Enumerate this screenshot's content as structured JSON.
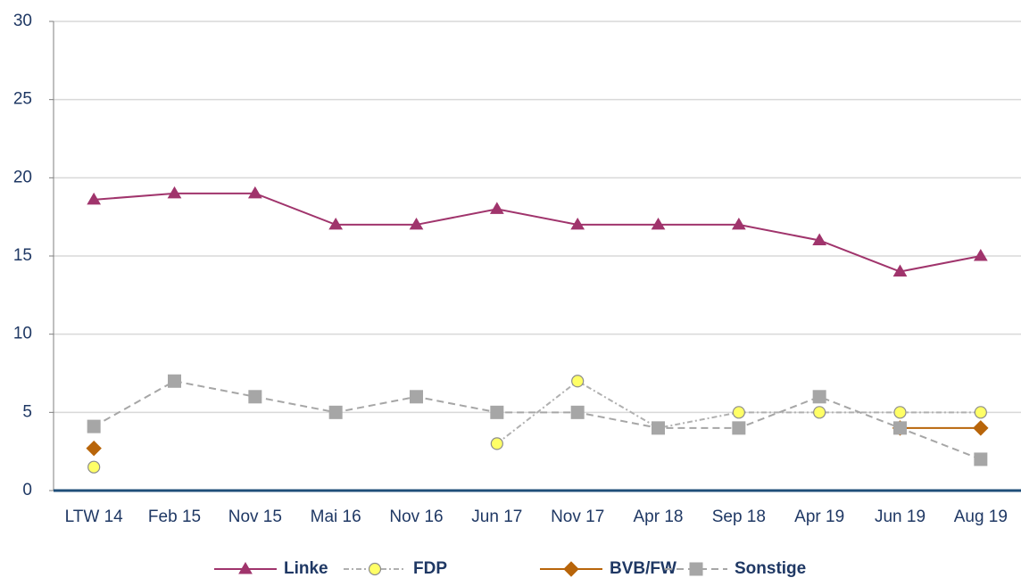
{
  "chart_data": {
    "type": "line",
    "categories": [
      "LTW 14",
      "Feb 15",
      "Nov 15",
      "Mai 16",
      "Nov 16",
      "Jun 17",
      "Nov 17",
      "Apr 18",
      "Sep 18",
      "Apr 19",
      "Jun 19",
      "Aug 19"
    ],
    "series": [
      {
        "name": "Linke",
        "color": "#a0346c",
        "marker": "triangle",
        "dash": "solid",
        "values": [
          18.6,
          19,
          19,
          17,
          17,
          18,
          17,
          17,
          17,
          16,
          14,
          15
        ]
      },
      {
        "name": "FDP",
        "color": "#b0b0b0",
        "marker_fill": "#ffff66",
        "marker": "circle",
        "dash": "dashdot",
        "values": [
          1.5,
          null,
          null,
          null,
          null,
          3,
          7,
          4,
          5,
          5,
          5,
          5
        ]
      },
      {
        "name": "BVB/FW",
        "color": "#b8650a",
        "marker": "diamond",
        "dash": "solid",
        "values": [
          2.7,
          null,
          null,
          null,
          null,
          null,
          null,
          null,
          null,
          null,
          4,
          4
        ]
      },
      {
        "name": "Sonstige",
        "color": "#a6a6a6",
        "marker": "square",
        "dash": "dashed",
        "values": [
          4.1,
          7,
          6,
          5,
          6,
          5,
          5,
          4,
          4,
          6,
          4,
          2
        ]
      }
    ],
    "ylim": [
      0,
      30
    ],
    "yticks": [
      0,
      5,
      10,
      15,
      20,
      25,
      30
    ],
    "grid": true,
    "legend": "bottom"
  }
}
